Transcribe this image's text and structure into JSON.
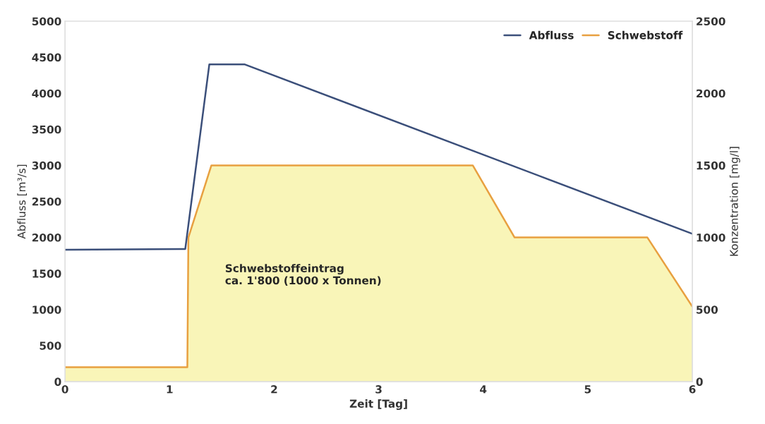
{
  "chart_data": {
    "type": "line",
    "xlabel": "Zeit [Tag]",
    "ylabel": "Abfluss [m³/s]",
    "y2label": "Konzentration [mg/l]",
    "xlim": [
      0,
      6
    ],
    "xticks": [
      0,
      1,
      2,
      3,
      4,
      5,
      6
    ],
    "ylim": [
      0,
      5000
    ],
    "yticks": [
      0,
      500,
      1000,
      1500,
      2000,
      2500,
      3000,
      3500,
      4000,
      4500,
      5000
    ],
    "y2lim": [
      0,
      2500
    ],
    "y2ticks": [
      0,
      500,
      1000,
      1500,
      2000,
      2500
    ],
    "series": [
      {
        "name": "Abfluss",
        "color": "#3b4f7a",
        "x": [
          0,
          1.15,
          1.38,
          1.72,
          6
        ],
        "values": [
          1830,
          1840,
          4400,
          4400,
          2050
        ]
      },
      {
        "name": "Schwebstoff",
        "type": "area",
        "axis": "y2",
        "color": "#e8a040",
        "x": [
          0,
          1.17,
          1.18,
          1.4,
          3.9,
          4.3,
          5.57,
          6
        ],
        "values": [
          100,
          100,
          1000,
          1500,
          1500,
          1000,
          1000,
          520
        ]
      }
    ],
    "annotations": [
      "Schwebstoffeintrag\nca. 1'800 (1000 x Tonnen)"
    ],
    "legend": "top right",
    "grid": false
  }
}
